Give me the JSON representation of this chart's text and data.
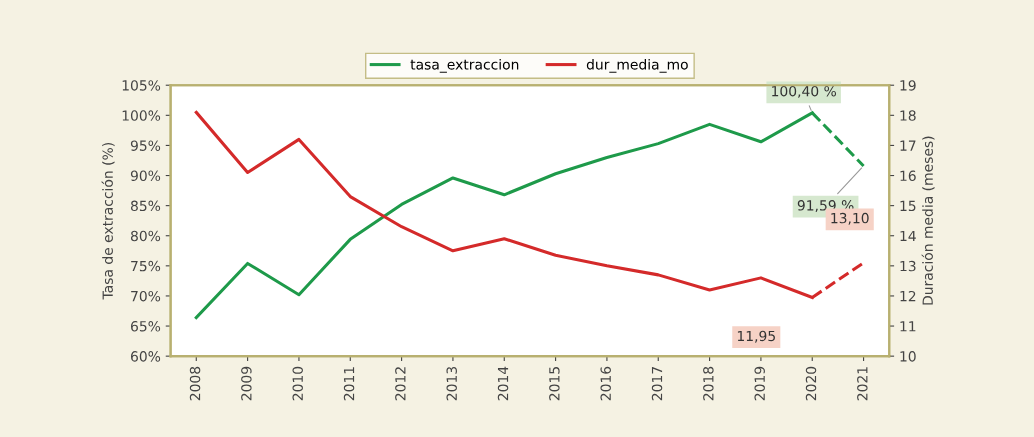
{
  "chart_data": {
    "type": "line",
    "ylabel": "Tasa de extracción (%)",
    "y2label": "Duración media (meses)",
    "categories": [
      "2008",
      "2009",
      "2010",
      "2011",
      "2012",
      "2013",
      "2014",
      "2015",
      "2016",
      "2017",
      "2018",
      "2019",
      "2020",
      "2021"
    ],
    "series": [
      {
        "name": "tasa_extraccion",
        "color": "#1e9a4a",
        "values": [
          66.4,
          75.4,
          70.2,
          79.4,
          85.2,
          89.6,
          86.8,
          90.3,
          93.0,
          95.3,
          98.5,
          95.6,
          100.4,
          null
        ]
      },
      {
        "name": "dur_media_mo",
        "color": "#d42a2a",
        "axis": "y2",
        "values": [
          18.1,
          16.1,
          17.2,
          15.3,
          14.3,
          13.5,
          13.9,
          13.35,
          13.0,
          12.7,
          12.2,
          12.6,
          11.95,
          null
        ]
      },
      {
        "color": "#1e9a4a",
        "line_style": "dashed",
        "values": [
          null,
          null,
          null,
          null,
          null,
          null,
          null,
          null,
          null,
          null,
          null,
          null,
          100.4,
          91.59
        ]
      },
      {
        "color": "#d42a2a",
        "line_style": "dashed",
        "axis": "y2",
        "values": [
          null,
          null,
          null,
          null,
          null,
          null,
          null,
          null,
          null,
          null,
          null,
          null,
          11.95,
          13.1
        ]
      }
    ],
    "ylim": [
      60,
      105
    ],
    "yticks": [
      {
        "value": 60,
        "label": "60%"
      },
      {
        "value": 65,
        "label": "65%"
      },
      {
        "value": 70,
        "label": "70%"
      },
      {
        "value": 75,
        "label": "75%"
      },
      {
        "value": 80,
        "label": "80%"
      },
      {
        "value": 85,
        "label": "85%"
      },
      {
        "value": 90,
        "label": "90%"
      },
      {
        "value": 95,
        "label": "95%"
      },
      {
        "value": 100,
        "label": "100%"
      },
      {
        "value": 105,
        "label": "105%"
      }
    ],
    "y2lim": [
      10,
      19
    ],
    "y2ticks": [
      10,
      11,
      12,
      13,
      14,
      15,
      16,
      17,
      18,
      19
    ],
    "annotations": [
      {
        "text": "100,40 %",
        "x": "2020",
        "y": 100.4
      },
      {
        "text": "91,59 %",
        "x": "2021",
        "y": 91.59
      },
      "13,10",
      "11,95"
    ],
    "legend": "top",
    "grid": false
  }
}
